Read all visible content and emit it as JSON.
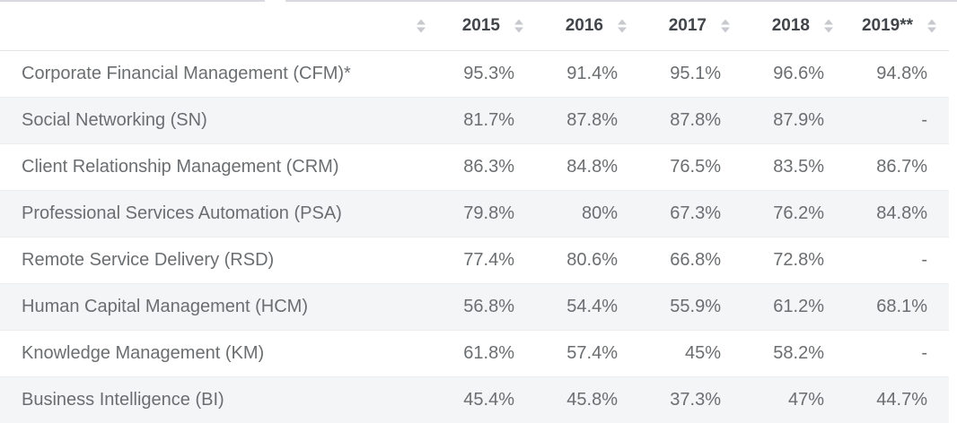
{
  "table": {
    "header": {
      "first_column_label": "",
      "columns": [
        {
          "label": "2015"
        },
        {
          "label": "2016"
        },
        {
          "label": "2017"
        },
        {
          "label": "2018"
        },
        {
          "label": "2019**"
        }
      ]
    },
    "rows": [
      {
        "label": "Corporate Financial Management (CFM)*",
        "values": [
          "95.3%",
          "91.4%",
          "95.1%",
          "96.6%",
          "94.8%"
        ]
      },
      {
        "label": "Social Networking (SN)",
        "values": [
          "81.7%",
          "87.8%",
          "87.8%",
          "87.9%",
          "-"
        ]
      },
      {
        "label": "Client Relationship Management (CRM)",
        "values": [
          "86.3%",
          "84.8%",
          "76.5%",
          "83.5%",
          "86.7%"
        ]
      },
      {
        "label": "Professional Services Automation (PSA)",
        "values": [
          "79.8%",
          "80%",
          "67.3%",
          "76.2%",
          "84.8%"
        ]
      },
      {
        "label": "Remote Service Delivery (RSD)",
        "values": [
          "77.4%",
          "80.6%",
          "66.8%",
          "72.8%",
          "-"
        ]
      },
      {
        "label": "Human Capital Management (HCM)",
        "values": [
          "56.8%",
          "54.4%",
          "55.9%",
          "61.2%",
          "68.1%"
        ]
      },
      {
        "label": "Knowledge Management (KM)",
        "values": [
          "61.8%",
          "57.4%",
          "45%",
          "58.2%",
          "-"
        ]
      },
      {
        "label": "Business Intelligence (BI)",
        "values": [
          "45.4%",
          "45.8%",
          "37.3%",
          "47%",
          "44.7%"
        ]
      }
    ],
    "icons": {
      "header_sort": "sort-both-icon"
    },
    "colors": {
      "stripe_row_background": "#f3f5f6",
      "header_text": "#41454a",
      "body_text": "#6b6e70",
      "sort_icon": "#c7c9ce",
      "row_border": "#ebedee",
      "header_border": "#e2e4e8",
      "top_line": "#d9dae1"
    }
  }
}
